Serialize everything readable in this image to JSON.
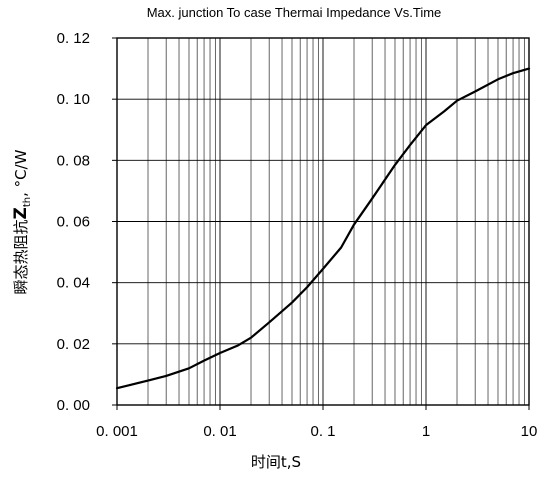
{
  "chart_data": {
    "type": "line",
    "title": "Max. junction To case Thermai Impedance Vs.Time",
    "xlabel": "时间t,S",
    "ylabel": {
      "prefix": "瞬态热阻抗",
      "main": "Z",
      "subscript": "th",
      "suffix": ", °C/W"
    },
    "x_scale": "log",
    "xlim": [
      0.001,
      10
    ],
    "ylim": [
      0,
      0.12
    ],
    "grid": true,
    "x_ticks": [
      {
        "value": 0.001,
        "label": "0. 001"
      },
      {
        "value": 0.01,
        "label": "0. 01"
      },
      {
        "value": 0.1,
        "label": "0. 1"
      },
      {
        "value": 1,
        "label": "1"
      },
      {
        "value": 10,
        "label": "10"
      }
    ],
    "y_ticks": [
      {
        "value": 0,
        "label": "0. 00"
      },
      {
        "value": 0.02,
        "label": "0. 02"
      },
      {
        "value": 0.04,
        "label": "0. 04"
      },
      {
        "value": 0.06,
        "label": "0. 06"
      },
      {
        "value": 0.08,
        "label": "0. 08"
      },
      {
        "value": 0.1,
        "label": "0. 10"
      },
      {
        "value": 0.12,
        "label": "0. 12"
      }
    ],
    "series": [
      {
        "x": [
          0.001,
          0.002,
          0.003,
          0.005,
          0.007,
          0.01,
          0.015,
          0.02,
          0.03,
          0.05,
          0.07,
          0.1,
          0.15,
          0.2,
          0.3,
          0.5,
          0.7,
          1,
          1.5,
          2,
          3,
          5,
          7,
          10
        ],
        "values": [
          0.0055,
          0.008,
          0.0095,
          0.012,
          0.0145,
          0.017,
          0.0195,
          0.022,
          0.027,
          0.0335,
          0.0385,
          0.0445,
          0.0515,
          0.059,
          0.0675,
          0.0785,
          0.085,
          0.0915,
          0.096,
          0.0995,
          0.1025,
          0.1065,
          0.1085,
          0.11
        ]
      }
    ]
  }
}
